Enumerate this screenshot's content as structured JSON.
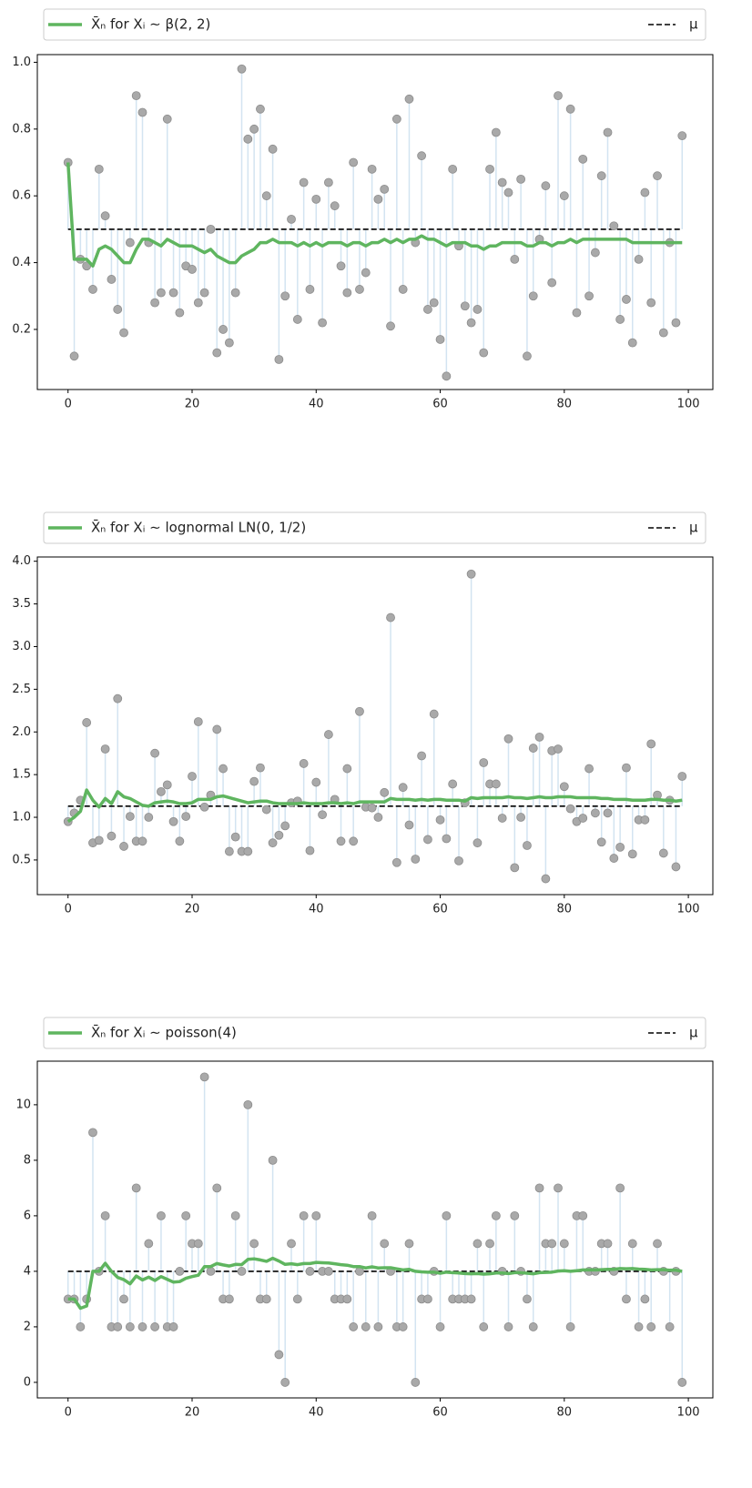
{
  "chart_data": [
    {
      "type": "stem",
      "legend": "X̄ₙ for Xᵢ ∼ β(2, 2)",
      "mu_label": "μ",
      "mu": 0.5,
      "x": [
        0,
        1,
        2,
        3,
        4,
        5,
        6,
        7,
        8,
        9,
        10,
        11,
        12,
        13,
        14,
        15,
        16,
        17,
        18,
        19,
        20,
        21,
        22,
        23,
        24,
        25,
        26,
        27,
        28,
        29,
        30,
        31,
        32,
        33,
        34,
        35,
        36,
        37,
        38,
        39,
        40,
        41,
        42,
        43,
        44,
        45,
        46,
        47,
        48,
        49,
        50,
        51,
        52,
        53,
        54,
        55,
        56,
        57,
        58,
        59,
        60,
        61,
        62,
        63,
        64,
        65,
        66,
        67,
        68,
        69,
        70,
        71,
        72,
        73,
        74,
        75,
        76,
        77,
        78,
        79,
        80,
        81,
        82,
        83,
        84,
        85,
        86,
        87,
        88,
        89,
        90,
        91,
        92,
        93,
        94,
        95,
        96,
        97,
        98,
        99
      ],
      "samples": [
        0.7,
        0.12,
        0.41,
        0.39,
        0.32,
        0.68,
        0.54,
        0.35,
        0.26,
        0.19,
        0.46,
        0.9,
        0.85,
        0.46,
        0.28,
        0.31,
        0.83,
        0.31,
        0.25,
        0.39,
        0.38,
        0.28,
        0.31,
        0.5,
        0.13,
        0.2,
        0.16,
        0.31,
        0.98,
        0.77,
        0.8,
        0.86,
        0.6,
        0.74,
        0.11,
        0.3,
        0.53,
        0.23,
        0.64,
        0.32,
        0.59,
        0.22,
        0.64,
        0.57,
        0.39,
        0.31,
        0.7,
        0.32,
        0.37,
        0.68,
        0.59,
        0.62,
        0.21,
        0.83,
        0.32,
        0.89,
        0.46,
        0.72,
        0.26,
        0.28,
        0.17,
        0.06,
        0.68,
        0.45,
        0.27,
        0.22,
        0.26,
        0.13,
        0.68,
        0.79,
        0.64,
        0.61,
        0.41,
        0.65,
        0.12,
        0.3,
        0.47,
        0.63,
        0.34,
        0.9,
        0.6,
        0.86,
        0.25,
        0.71,
        0.3,
        0.43,
        0.66,
        0.79,
        0.51,
        0.23,
        0.29,
        0.16,
        0.41,
        0.61,
        0.28,
        0.66,
        0.19,
        0.46,
        0.22,
        0.78
      ],
      "running_mean": [
        0.7,
        0.41,
        0.41,
        0.41,
        0.39,
        0.44,
        0.45,
        0.44,
        0.42,
        0.4,
        0.4,
        0.44,
        0.47,
        0.47,
        0.46,
        0.45,
        0.47,
        0.46,
        0.45,
        0.45,
        0.45,
        0.44,
        0.43,
        0.44,
        0.42,
        0.41,
        0.4,
        0.4,
        0.42,
        0.43,
        0.44,
        0.46,
        0.46,
        0.47,
        0.46,
        0.46,
        0.46,
        0.45,
        0.46,
        0.45,
        0.46,
        0.45,
        0.46,
        0.46,
        0.46,
        0.45,
        0.46,
        0.46,
        0.45,
        0.46,
        0.46,
        0.47,
        0.46,
        0.47,
        0.46,
        0.47,
        0.47,
        0.48,
        0.47,
        0.47,
        0.46,
        0.45,
        0.46,
        0.46,
        0.46,
        0.45,
        0.45,
        0.44,
        0.45,
        0.45,
        0.46,
        0.46,
        0.46,
        0.46,
        0.45,
        0.45,
        0.46,
        0.46,
        0.45,
        0.46,
        0.46,
        0.47,
        0.46,
        0.47,
        0.47,
        0.47,
        0.47,
        0.47,
        0.47,
        0.47,
        0.47,
        0.46,
        0.46,
        0.46,
        0.46,
        0.46,
        0.46,
        0.46,
        0.46,
        0.46
      ],
      "line_color": "#5fb55f",
      "stem_color": "#d3e4f1",
      "marker_color": "#a9a9a9",
      "xlim": [
        -4.95,
        103.95
      ],
      "xticks": [
        0,
        20,
        40,
        60,
        80,
        100
      ],
      "ylim": [
        0.02,
        1.023
      ],
      "yticks": [
        0.2,
        0.4,
        0.6,
        0.8,
        {
          "value": 1.0,
          "label": "1.0"
        }
      ]
    },
    {
      "type": "stem",
      "legend": "X̄ₙ for Xᵢ ∼ lognormal LN(0, 1/2)",
      "mu_label": "μ",
      "mu": 1.13,
      "x": [
        0,
        1,
        2,
        3,
        4,
        5,
        6,
        7,
        8,
        9,
        10,
        11,
        12,
        13,
        14,
        15,
        16,
        17,
        18,
        19,
        20,
        21,
        22,
        23,
        24,
        25,
        26,
        27,
        28,
        29,
        30,
        31,
        32,
        33,
        34,
        35,
        36,
        37,
        38,
        39,
        40,
        41,
        42,
        43,
        44,
        45,
        46,
        47,
        48,
        49,
        50,
        51,
        52,
        53,
        54,
        55,
        56,
        57,
        58,
        59,
        60,
        61,
        62,
        63,
        64,
        65,
        66,
        67,
        68,
        69,
        70,
        71,
        72,
        73,
        74,
        75,
        76,
        77,
        78,
        79,
        80,
        81,
        82,
        83,
        84,
        85,
        86,
        87,
        88,
        89,
        90,
        91,
        92,
        93,
        94,
        95,
        96,
        97,
        98,
        99
      ],
      "samples": [
        0.95,
        1.05,
        1.2,
        2.11,
        0.7,
        0.73,
        1.8,
        0.78,
        2.39,
        0.66,
        1.01,
        0.72,
        0.72,
        1.0,
        1.75,
        1.3,
        1.38,
        0.95,
        0.72,
        1.01,
        1.48,
        2.12,
        1.12,
        1.26,
        2.03,
        1.57,
        0.6,
        0.77,
        0.6,
        0.6,
        1.42,
        1.58,
        1.09,
        0.7,
        0.79,
        0.9,
        1.17,
        1.19,
        1.63,
        0.61,
        1.41,
        1.03,
        1.97,
        1.21,
        0.72,
        1.57,
        0.72,
        2.24,
        1.12,
        1.11,
        1.0,
        1.29,
        3.34,
        0.47,
        1.35,
        0.91,
        0.51,
        1.72,
        0.74,
        2.21,
        0.97,
        0.75,
        1.39,
        0.49,
        1.17,
        3.85,
        0.7,
        1.64,
        1.39,
        1.39,
        0.99,
        1.92,
        0.41,
        1.0,
        0.67,
        1.81,
        1.94,
        0.28,
        1.78,
        1.8,
        1.36,
        1.1,
        0.95,
        0.99,
        1.57,
        1.05,
        0.71,
        1.05,
        0.52,
        0.65,
        1.58,
        0.57,
        0.97,
        0.97,
        1.86,
        1.26,
        0.58,
        1.2,
        0.42,
        1.48
      ],
      "running_mean": [
        0.95,
        1.0,
        1.07,
        1.32,
        1.2,
        1.12,
        1.22,
        1.16,
        1.3,
        1.24,
        1.22,
        1.18,
        1.14,
        1.13,
        1.17,
        1.18,
        1.19,
        1.18,
        1.16,
        1.16,
        1.17,
        1.21,
        1.21,
        1.21,
        1.24,
        1.25,
        1.23,
        1.21,
        1.19,
        1.17,
        1.18,
        1.19,
        1.19,
        1.17,
        1.16,
        1.16,
        1.16,
        1.16,
        1.17,
        1.16,
        1.16,
        1.16,
        1.17,
        1.17,
        1.16,
        1.17,
        1.16,
        1.18,
        1.18,
        1.18,
        1.18,
        1.18,
        1.22,
        1.21,
        1.21,
        1.21,
        1.2,
        1.21,
        1.2,
        1.21,
        1.21,
        1.2,
        1.2,
        1.2,
        1.19,
        1.23,
        1.22,
        1.23,
        1.23,
        1.23,
        1.23,
        1.24,
        1.23,
        1.23,
        1.22,
        1.23,
        1.24,
        1.23,
        1.23,
        1.24,
        1.24,
        1.24,
        1.23,
        1.23,
        1.23,
        1.23,
        1.22,
        1.22,
        1.21,
        1.21,
        1.21,
        1.2,
        1.2,
        1.2,
        1.21,
        1.21,
        1.2,
        1.2,
        1.19,
        1.2
      ],
      "line_color": "#5fb55f",
      "stem_color": "#d3e4f1",
      "marker_color": "#a9a9a9",
      "xlim": [
        -4.95,
        103.95
      ],
      "xticks": [
        0,
        20,
        40,
        60,
        80,
        100
      ],
      "ylim": [
        0.094,
        4.05
      ],
      "yticks": [
        0.5,
        {
          "value": 1,
          "label": "1.0"
        },
        1.5,
        {
          "value": 2,
          "label": "2.0"
        },
        2.5,
        {
          "value": 3,
          "label": "3.0"
        },
        3.5,
        {
          "value": 4,
          "label": "4.0"
        }
      ]
    },
    {
      "type": "stem",
      "legend": "X̄ₙ for Xᵢ ∼ poisson(4)",
      "mu_label": "μ",
      "mu": 4,
      "x": [
        0,
        1,
        2,
        3,
        4,
        5,
        6,
        7,
        8,
        9,
        10,
        11,
        12,
        13,
        14,
        15,
        16,
        17,
        18,
        19,
        20,
        21,
        22,
        23,
        24,
        25,
        26,
        27,
        28,
        29,
        30,
        31,
        32,
        33,
        34,
        35,
        36,
        37,
        38,
        39,
        40,
        41,
        42,
        43,
        44,
        45,
        46,
        47,
        48,
        49,
        50,
        51,
        52,
        53,
        54,
        55,
        56,
        57,
        58,
        59,
        60,
        61,
        62,
        63,
        64,
        65,
        66,
        67,
        68,
        69,
        70,
        71,
        72,
        73,
        74,
        75,
        76,
        77,
        78,
        79,
        80,
        81,
        82,
        83,
        84,
        85,
        86,
        87,
        88,
        89,
        90,
        91,
        92,
        93,
        94,
        95,
        96,
        97,
        98,
        99
      ],
      "samples": [
        3,
        3,
        2,
        3,
        9,
        4,
        6,
        2,
        2,
        3,
        2,
        7,
        2,
        5,
        2,
        6,
        2,
        2,
        4,
        6,
        5,
        5,
        11,
        4,
        7,
        3,
        3,
        6,
        4,
        10,
        5,
        3,
        3,
        8,
        1,
        0,
        5,
        3,
        6,
        4,
        6,
        4,
        4,
        3,
        3,
        3,
        2,
        4,
        2,
        6,
        2,
        5,
        4,
        2,
        2,
        5,
        0,
        3,
        3,
        4,
        2,
        6,
        3,
        3,
        3,
        3,
        5,
        2,
        5,
        6,
        4,
        2,
        6,
        4,
        3,
        2,
        7,
        5,
        5,
        7,
        5,
        2,
        6,
        6,
        4,
        4,
        5,
        5,
        4,
        7,
        3,
        5,
        2,
        3,
        2,
        5,
        4,
        2,
        4,
        0
      ],
      "running_mean": [
        3,
        3,
        2.67,
        2.75,
        4,
        4,
        4.29,
        4,
        3.78,
        3.7,
        3.55,
        3.83,
        3.69,
        3.79,
        3.67,
        3.81,
        3.71,
        3.61,
        3.63,
        3.75,
        3.81,
        3.86,
        4.17,
        4.17,
        4.28,
        4.23,
        4.19,
        4.25,
        4.24,
        4.43,
        4.45,
        4.41,
        4.36,
        4.47,
        4.37,
        4.25,
        4.27,
        4.24,
        4.28,
        4.28,
        4.32,
        4.31,
        4.3,
        4.27,
        4.24,
        4.22,
        4.17,
        4.17,
        4.12,
        4.16,
        4.12,
        4.13,
        4.13,
        4.09,
        4.05,
        4.07,
        4.0,
        3.98,
        3.97,
        3.97,
        3.93,
        3.97,
        3.95,
        3.94,
        3.92,
        3.91,
        3.92,
        3.9,
        3.91,
        3.94,
        3.94,
        3.92,
        3.95,
        3.95,
        3.93,
        3.91,
        3.95,
        3.96,
        3.97,
        4.01,
        4.02,
        4.0,
        4.02,
        4.05,
        4.05,
        4.05,
        4.06,
        4.07,
        4.07,
        4.1,
        4.09,
        4.1,
        4.08,
        4.07,
        4.05,
        4.06,
        4.06,
        4.04,
        4.04,
        4.0
      ],
      "line_color": "#5fb55f",
      "stem_color": "#d3e4f1",
      "marker_color": "#a9a9a9",
      "xlim": [
        -4.95,
        103.95
      ],
      "xticks": [
        0,
        20,
        40,
        60,
        80,
        100
      ],
      "ylim": [
        -0.56,
        11.57
      ],
      "yticks": [
        0,
        2,
        4,
        6,
        8,
        10
      ]
    }
  ]
}
